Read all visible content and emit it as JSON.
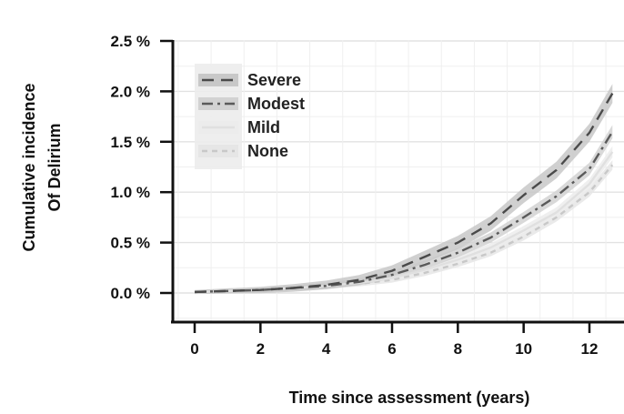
{
  "chart_data": {
    "type": "line",
    "title": "",
    "xlabel": "Time since assessment (years)",
    "ylabel_lines": [
      "Cumulative incidence",
      "Of Delirium"
    ],
    "x_ticks": [
      0,
      2,
      4,
      6,
      8,
      10,
      12
    ],
    "x_tick_labels": [
      "0",
      "2",
      "4",
      "6",
      "8",
      "10",
      "12"
    ],
    "y_ticks": [
      0,
      0.5,
      1.0,
      1.5,
      2.0,
      2.5
    ],
    "y_tick_labels": [
      "0.0 %",
      "0.5 %",
      "1.0 %",
      "1.5 %",
      "2.0 %",
      "2.5 %"
    ],
    "xlim": [
      -0.6,
      12.7
    ],
    "ylim": [
      -0.25,
      2.5
    ],
    "grid": true,
    "legend_position": "top-left",
    "x": [
      0,
      1,
      2,
      3,
      4,
      5,
      6,
      7,
      8,
      9,
      10,
      11,
      12,
      12.7
    ],
    "series": [
      {
        "name": "Severe",
        "dash": "13,8",
        "color": "#4a4a4a",
        "band_color": "#c8c8c8",
        "band_halfwidth": 0.05,
        "values": [
          0.01,
          0.02,
          0.03,
          0.05,
          0.08,
          0.13,
          0.22,
          0.36,
          0.5,
          0.69,
          0.97,
          1.22,
          1.59,
          1.98
        ]
      },
      {
        "name": "Modest",
        "dash": "12,5,3,5",
        "color": "#5a5a5a",
        "band_color": "#d2d2d2",
        "band_halfwidth": 0.035,
        "values": [
          0.01,
          0.02,
          0.03,
          0.05,
          0.07,
          0.11,
          0.18,
          0.28,
          0.4,
          0.55,
          0.75,
          0.96,
          1.23,
          1.6
        ]
      },
      {
        "name": "Mild",
        "dash": "",
        "color": "#e0e0e0",
        "band_color": "#ececec",
        "band_halfwidth": 0.03,
        "values": [
          0.01,
          0.02,
          0.03,
          0.05,
          0.07,
          0.1,
          0.15,
          0.23,
          0.33,
          0.45,
          0.62,
          0.8,
          1.08,
          1.4
        ]
      },
      {
        "name": "None",
        "dash": "6,5",
        "color": "#c8c8c8",
        "band_color": "#e6e6e6",
        "band_halfwidth": 0.025,
        "values": [
          0.01,
          0.02,
          0.03,
          0.04,
          0.06,
          0.09,
          0.13,
          0.2,
          0.29,
          0.4,
          0.56,
          0.75,
          1.0,
          1.27
        ]
      }
    ]
  }
}
